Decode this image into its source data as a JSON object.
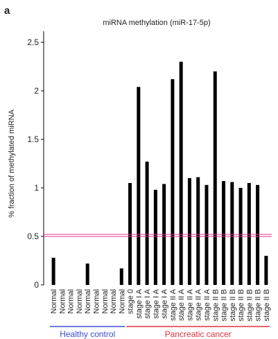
{
  "chart_data": {
    "type": "bar",
    "panel_label": "a",
    "title": "miRNA methylation (miR-17-5p)",
    "y_label": "% fraction of methylated miRNA",
    "categories": [
      "Normal",
      "Normal",
      "Normal",
      "Normal",
      "Normal",
      "Normal",
      "Normal",
      "Normal",
      "Normal",
      "stage 0",
      "stage I A",
      "stage I A",
      "stage I A",
      "stage I A",
      "stage II A",
      "stage II A",
      "stage II A",
      "stage II A",
      "stage II A",
      "stage II B",
      "stage II B",
      "stage II B",
      "stage II B",
      "stage II B",
      "stage II B",
      "stage II B"
    ],
    "values": [
      0.28,
      0,
      0,
      0,
      0.22,
      0,
      0,
      0,
      0.17,
      1.05,
      2.04,
      1.27,
      0.98,
      1.04,
      2.12,
      2.3,
      1.1,
      1.11,
      1.03,
      2.2,
      1.07,
      1.06,
      1.0,
      1.05,
      1.03,
      0.3
    ],
    "color": "#000000",
    "ylim": [
      0,
      2.5
    ],
    "yticks": [
      0,
      0.5,
      1,
      1.5,
      2,
      2.5
    ],
    "threshold": {
      "value": 0.51,
      "color": "#e8368f"
    },
    "groups": [
      {
        "label": "Healthy control",
        "start": 0,
        "end": 8,
        "color": "#3b4cd6"
      },
      {
        "label": "Pancreatic cancer",
        "start": 9,
        "end": 25,
        "color": "#e0303a"
      }
    ]
  }
}
